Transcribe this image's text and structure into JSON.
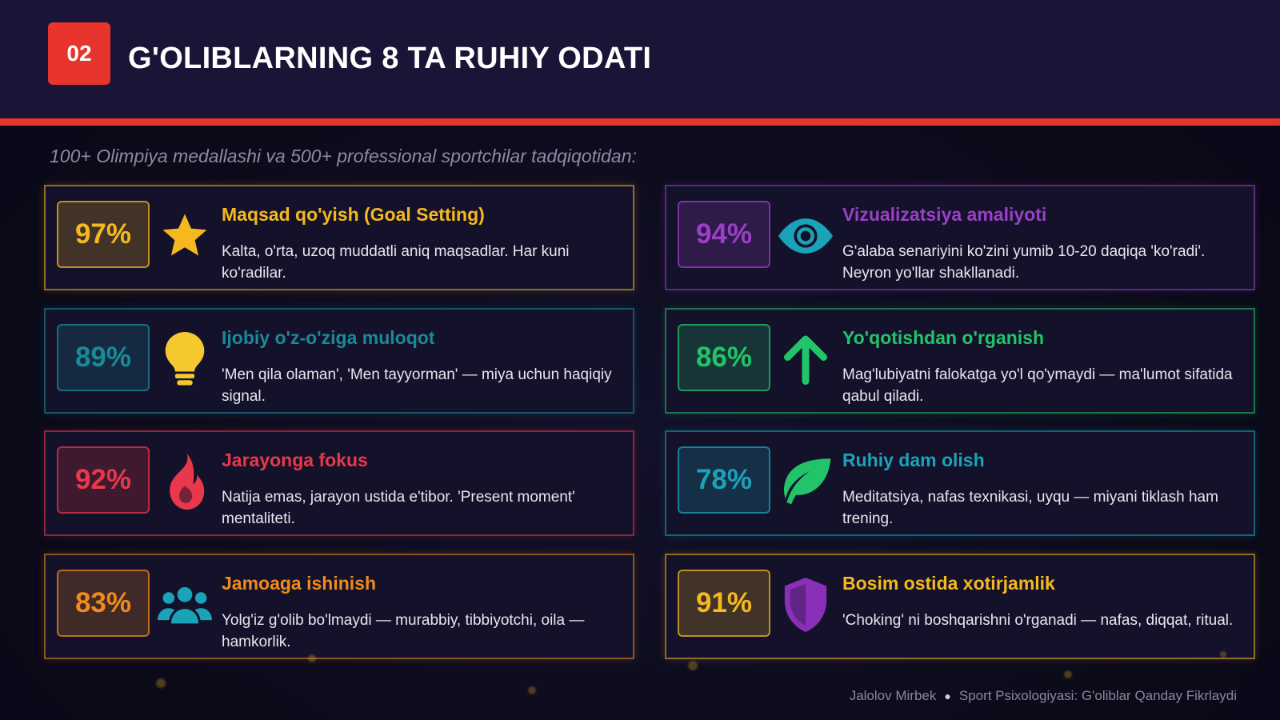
{
  "header": {
    "slide_number": "02",
    "title": "G'OLIBLARNING 8 TA RUHIY ODATI"
  },
  "subtitle": "100+ Olimpiya medallashi va 500+ professional sportchilar tadqiqotidan:",
  "colors": {
    "accent_red": "#e8342c",
    "header_bg": "#1a1436"
  },
  "cards": [
    {
      "percent": "97%",
      "title": "Maqsad qo'yish (Goal Setting)",
      "description": "Kalta, o'rta, uzoq muddatli aniq maqsadlar. Har kuni ko'radilar.",
      "icon": "star-icon",
      "color": "#f5b820"
    },
    {
      "percent": "94%",
      "title": "Vizualizatsiya amaliyoti",
      "description": "G'alaba senariyini ko'zini yumib 10-20 daqiqa 'ko'radi'. Neyron yo'llar shakllanadi.",
      "icon": "eye-icon",
      "color": "#9c3fc8",
      "icon_color": "#1aa3b8"
    },
    {
      "percent": "89%",
      "title": "Ijobiy o'z-o'ziga muloqot",
      "description": "'Men qila olaman', 'Men tayyorman' — miya uchun haqiqiy signal.",
      "icon": "lightbulb-icon",
      "color": "#1a8a9a",
      "icon_color": "#f5c830"
    },
    {
      "percent": "86%",
      "title": "Yo'qotishdan o'rganish",
      "description": "Mag'lubiyatni falokatga yo'l qo'ymaydi — ma'lumot sifatida qabul qiladi.",
      "icon": "arrow-up-icon",
      "color": "#22c46a"
    },
    {
      "percent": "92%",
      "title": "Jarayonga fokus",
      "description": "Natija emas, jarayon ustida e'tibor. 'Present moment' mentaliteti.",
      "icon": "flame-icon",
      "color": "#e8384a"
    },
    {
      "percent": "78%",
      "title": "Ruhiy dam olish",
      "description": "Meditatsiya, nafas texnikasi, uyqu — miyani tiklash ham trening.",
      "icon": "leaf-icon",
      "color": "#1aa3b8",
      "icon_color": "#22c46a"
    },
    {
      "percent": "83%",
      "title": "Jamoaga ishinish",
      "description": "Yolg'iz g'olib bo'lmaydi — murabbiy, tibbiyotchi, oila — hamkorlik.",
      "icon": "team-icon",
      "color": "#f08a1c",
      "icon_color": "#1aa3b8"
    },
    {
      "percent": "91%",
      "title": "Bosim ostida xotirjamlik",
      "description": "'Choking' ni boshqarishni o'rganadi — nafas, diqqat, ritual.",
      "icon": "shield-icon",
      "color": "#f5b820",
      "icon_color": "#8a2fb8"
    }
  ],
  "footer": {
    "author": "Jalolov Mirbek",
    "course": "Sport Psixologiyasi: G'oliblar Qanday Fikrlaydi"
  }
}
